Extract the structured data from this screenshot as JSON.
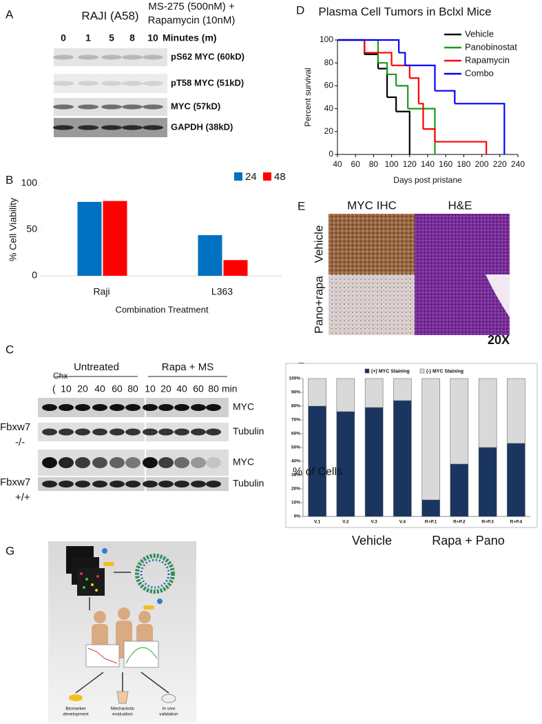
{
  "panel_labels": [
    "A",
    "B",
    "C",
    "D",
    "E",
    "F",
    "G"
  ],
  "blot_a": {
    "cell_line": "RAJI (A58)",
    "treatment": [
      "MS-275 (500nM) +",
      "Rapamycin (10nM)"
    ],
    "times": [
      "0",
      "1",
      "5",
      "8",
      "10"
    ],
    "time_unit": "Minutes (m)",
    "bands": [
      "pS62 MYC (60kD)",
      "pT58 MYC (51kD)",
      "MYC (57kD)",
      "GAPDH (38kD)"
    ]
  },
  "blot_c": {
    "groups": [
      "Untreated",
      "Rapa + MS"
    ],
    "chx": "Chx",
    "bracket": "(",
    "lanes": [
      [
        "10",
        "20",
        "40",
        "60",
        "80"
      ],
      [
        "10",
        "20",
        "40",
        "60",
        "80"
      ]
    ],
    "unit": "min",
    "bands": [
      "MYC",
      "Tubulin",
      "MYC",
      "Tubulin"
    ],
    "genotypes": [
      [
        "Fbxw7",
        "-/-"
      ],
      [
        "Fbxw7",
        "+/+"
      ]
    ]
  },
  "ihc": {
    "columns": [
      "MYC IHC",
      "H&E"
    ],
    "rows": [
      "Vehicle",
      "Pano+rapa"
    ],
    "magnification": "20X"
  },
  "schematic": {
    "labels": [
      [
        "Biomarker",
        "development"
      ],
      [
        "Mechanistic",
        "evaluation"
      ],
      [
        "In vivo",
        "validation"
      ]
    ]
  },
  "chart_data": [
    {
      "type": "bar",
      "xlabel": "Combination Treatment",
      "ylabel": "% Cell Viability",
      "categories": [
        "Raji",
        "L363"
      ],
      "series": [
        {
          "name": "24",
          "color": "#0070c0",
          "values": [
            80,
            44
          ]
        },
        {
          "name": "48",
          "color": "#ff0000",
          "values": [
            81,
            17
          ]
        }
      ],
      "ylim": [
        0,
        100
      ],
      "yticks": [
        0,
        50,
        100
      ],
      "legend": "top-right"
    },
    {
      "type": "step",
      "title": "Plasma Cell Tumors in Bclxl Mice",
      "xlabel": "Days post pristane",
      "ylabel": "Percent survival",
      "xlim": [
        40,
        240
      ],
      "xticks": [
        40,
        60,
        80,
        100,
        120,
        140,
        160,
        180,
        200,
        220,
        240
      ],
      "ylim": [
        0,
        100
      ],
      "yticks": [
        0,
        20,
        40,
        60,
        80,
        100
      ],
      "legend": "top-right",
      "series": [
        {
          "name": "Vehicle",
          "color": "#000000",
          "x": [
            40,
            70,
            85,
            95,
            105,
            120
          ],
          "values": [
            100,
            87.5,
            75,
            50,
            37.5,
            0
          ]
        },
        {
          "name": "Panobinostat",
          "color": "#1a9a1a",
          "x": [
            40,
            85,
            95,
            105,
            118,
            148
          ],
          "values": [
            100,
            80,
            70,
            60,
            40,
            0
          ]
        },
        {
          "name": "Rapamycin",
          "color": "#ff0000",
          "x": [
            40,
            70,
            100,
            120,
            130,
            135,
            148,
            205
          ],
          "values": [
            100,
            88.9,
            77.8,
            66.7,
            44.4,
            22.2,
            11.1,
            0
          ]
        },
        {
          "name": "Combo",
          "color": "#0000ff",
          "x": [
            40,
            108,
            115,
            148,
            170,
            225
          ],
          "values": [
            100,
            88.9,
            77.8,
            55.6,
            44.4,
            0
          ]
        }
      ]
    },
    {
      "type": "stacked_bar",
      "ylabel": "% of Cells",
      "categories": [
        "V.1",
        "V.2",
        "V.3",
        "V.4",
        "R+P.1",
        "R+P.2",
        "R+P.3",
        "R+P.4"
      ],
      "groups": [
        "Vehicle",
        "Rapa + Pano"
      ],
      "series": [
        {
          "name": "(+) MYC Staining",
          "color": "#1a3560",
          "values": [
            80,
            76,
            79,
            84,
            12,
            38,
            50,
            53
          ]
        },
        {
          "name": "(-) MYC Staining",
          "color": "#d9d9d9",
          "values": [
            20,
            24,
            21,
            16,
            88,
            62,
            50,
            47
          ]
        }
      ],
      "ylim": [
        0,
        100
      ],
      "yticks": [
        {
          "value": 0,
          "label": "0%"
        },
        {
          "value": 10,
          "label": "10%"
        },
        {
          "value": 20,
          "label": "20%"
        },
        {
          "value": 30,
          "label": "30%"
        },
        {
          "value": 40,
          "label": "40%"
        },
        {
          "value": 50,
          "label": "50%"
        },
        {
          "value": 60,
          "label": "60%"
        },
        {
          "value": 70,
          "label": "70%"
        },
        {
          "value": 80,
          "label": "80%"
        },
        {
          "value": 90,
          "label": "90%"
        },
        {
          "value": 100,
          "label": "100%"
        }
      ],
      "legend": "top"
    }
  ]
}
